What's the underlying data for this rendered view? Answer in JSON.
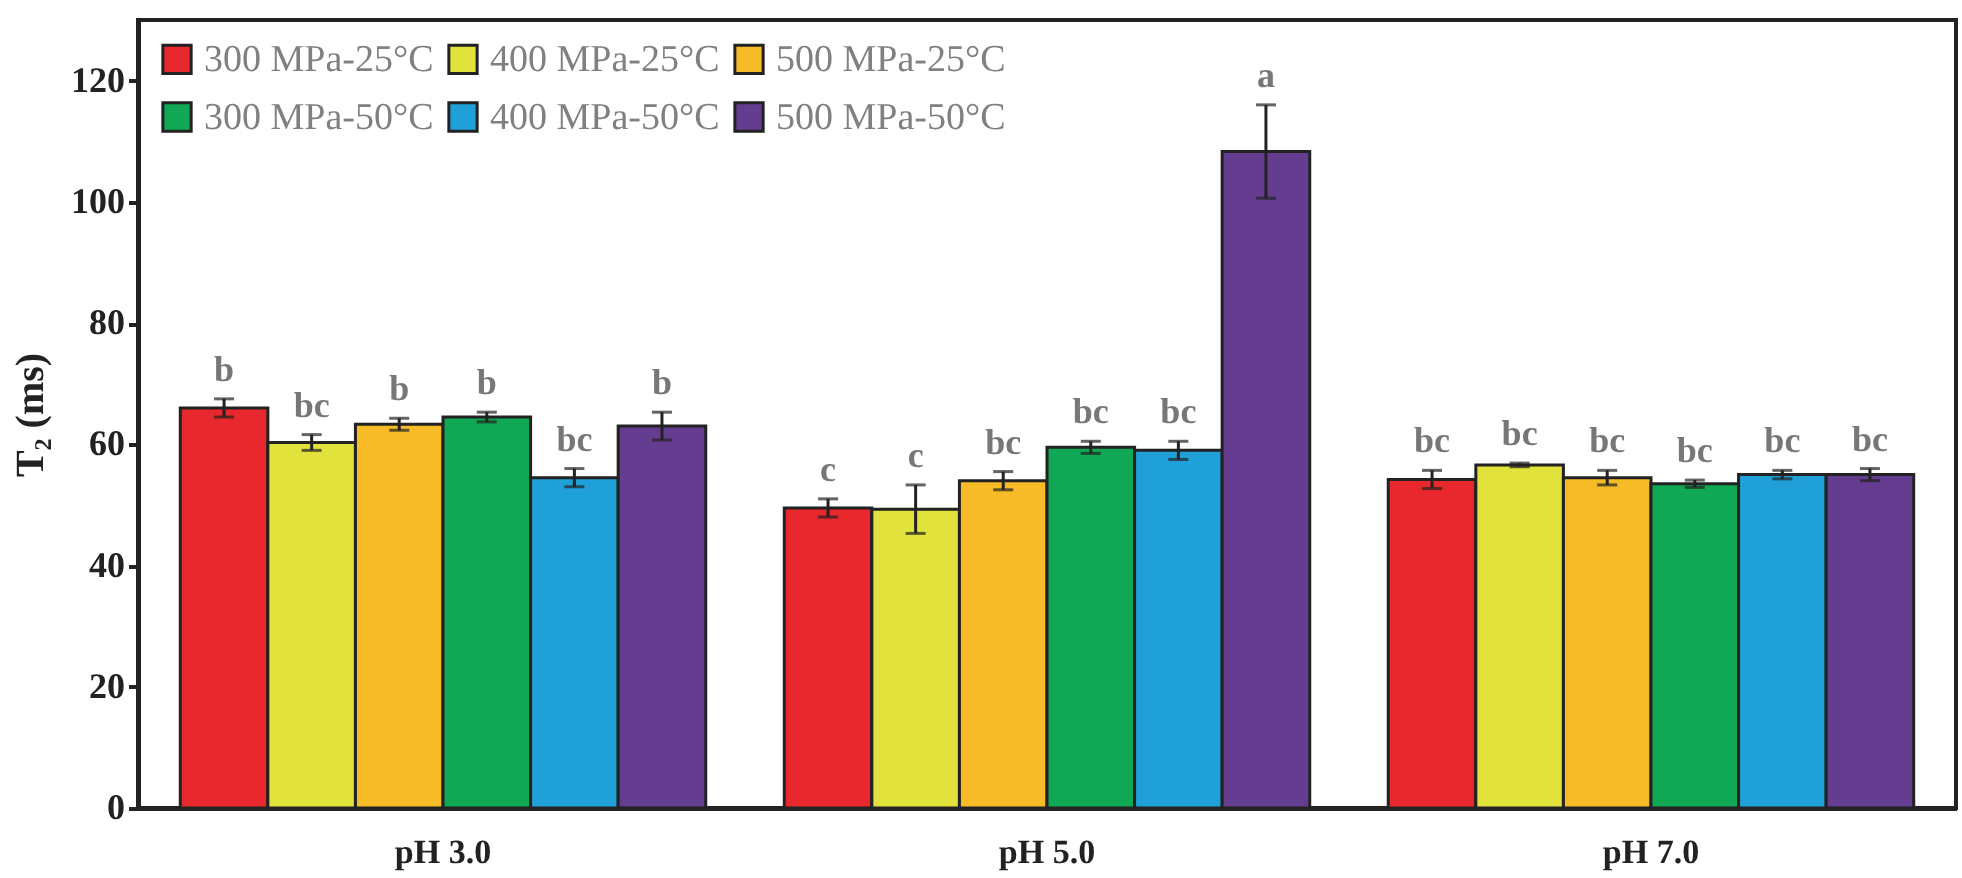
{
  "chart_data": {
    "type": "bar",
    "ylabel": "T₂ (ms)",
    "categories": [
      "pH 3.0",
      "pH 5.0",
      "pH 7.0"
    ],
    "ylim": [
      0,
      130
    ],
    "yticks": [
      0,
      20,
      40,
      60,
      80,
      100,
      120
    ],
    "legend": "top left",
    "series": [
      {
        "name": "300 MPa-25°C",
        "color": "#e8282c",
        "values": [
          66,
          49.5,
          54.2
        ],
        "errors": [
          1.5,
          1.5,
          1.5
        ],
        "value_labels": [
          "b",
          "c",
          "bc"
        ]
      },
      {
        "name": "400 MPa-25°C",
        "color": "#e2e23c",
        "values": [
          60.3,
          49.3,
          56.6
        ],
        "errors": [
          1.3,
          4,
          0.3
        ],
        "value_labels": [
          "bc",
          "c",
          "bc"
        ]
      },
      {
        "name": "500 MPa-25°C",
        "color": "#f8bb28",
        "values": [
          63.3,
          54,
          54.5
        ],
        "errors": [
          1,
          1.5,
          1.2
        ],
        "value_labels": [
          "b",
          "bc",
          "bc"
        ]
      },
      {
        "name": "300 MPa-50°C",
        "color": "#10a854",
        "values": [
          64.5,
          59.5,
          53.5
        ],
        "errors": [
          0.8,
          1,
          0.6
        ],
        "value_labels": [
          "b",
          "bc",
          "bc"
        ]
      },
      {
        "name": "400 MPa-50°C",
        "color": "#20a0d8",
        "values": [
          54.5,
          59,
          55
        ],
        "errors": [
          1.5,
          1.5,
          0.7
        ],
        "value_labels": [
          "bc",
          "bc",
          "bc"
        ]
      },
      {
        "name": "500 MPa-50°C",
        "color": "#643c90",
        "values": [
          63,
          108.3,
          55
        ],
        "errors": [
          2.3,
          7.7,
          1
        ],
        "value_labels": [
          "b",
          "a",
          "bc"
        ]
      }
    ]
  }
}
